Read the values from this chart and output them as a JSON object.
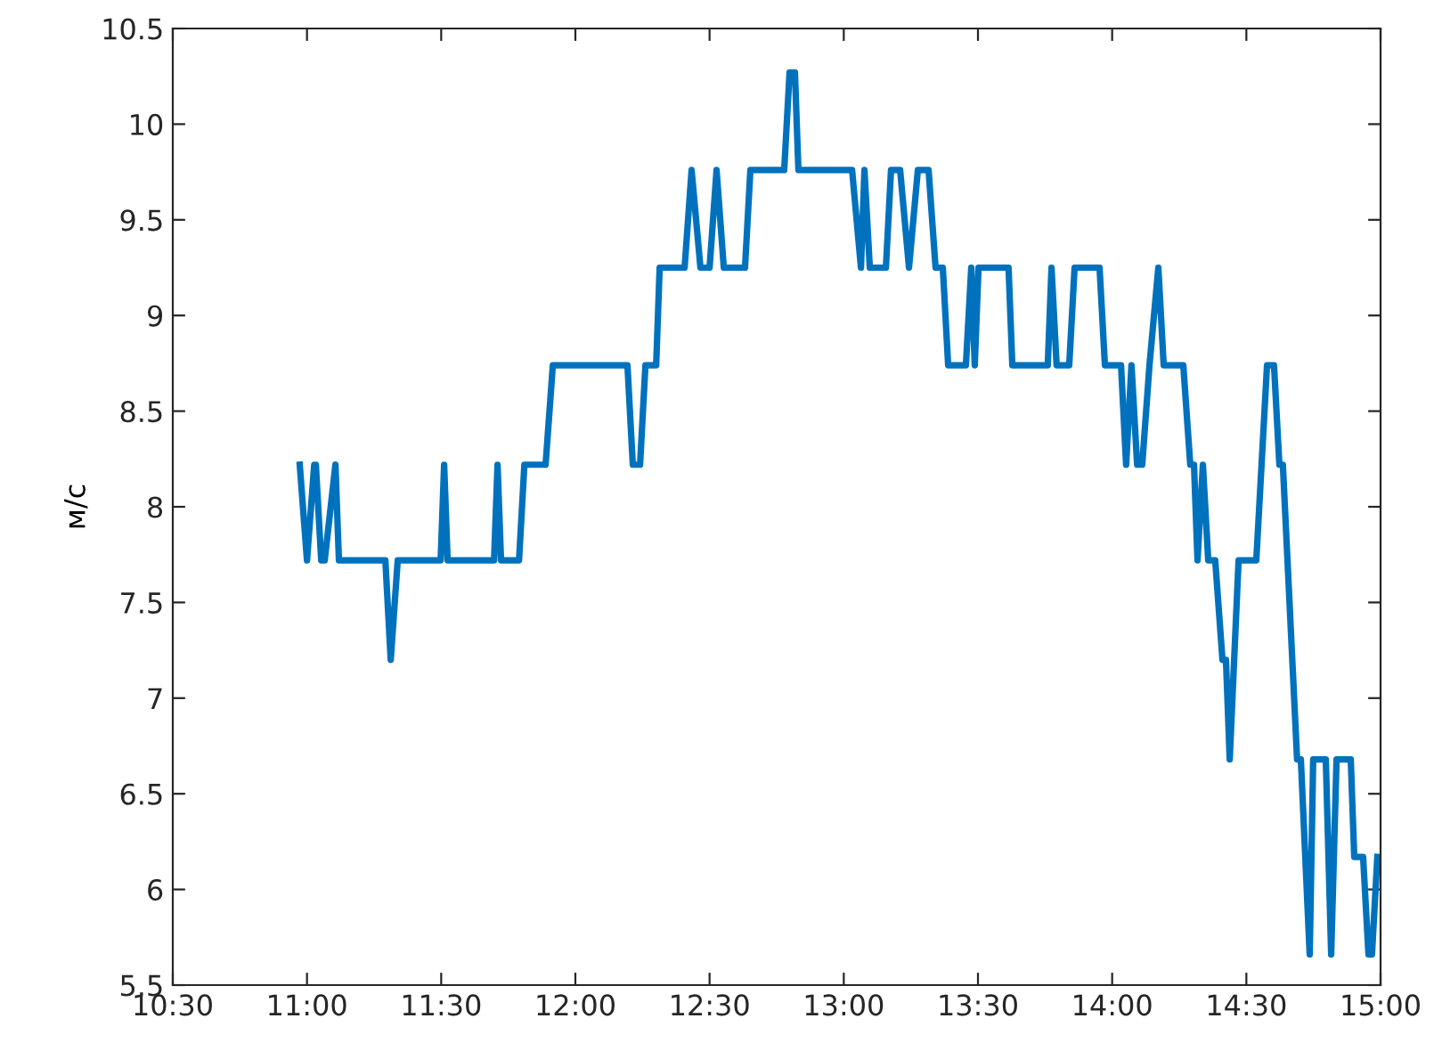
{
  "chart_data": {
    "type": "line",
    "ylabel": "м/с",
    "x": [
      10.973,
      11.0,
      11.027,
      11.033,
      11.053,
      11.066,
      11.106,
      11.119,
      11.292,
      11.312,
      11.338,
      11.498,
      11.511,
      11.524,
      11.697,
      11.71,
      11.723,
      11.79,
      11.81,
      11.889,
      11.916,
      12.194,
      12.214,
      12.241,
      12.261,
      12.301,
      12.314,
      12.407,
      12.433,
      12.466,
      12.5,
      12.526,
      12.553,
      12.632,
      12.652,
      12.778,
      12.798,
      12.818,
      12.831,
      13.031,
      13.064,
      13.077,
      13.097,
      13.157,
      13.176,
      13.21,
      13.243,
      13.276,
      13.316,
      13.342,
      13.369,
      13.389,
      13.455,
      13.475,
      13.488,
      13.502,
      13.614,
      13.628,
      13.76,
      13.774,
      13.793,
      13.84,
      13.86,
      13.953,
      13.973,
      14.033,
      14.052,
      14.072,
      14.093,
      14.112,
      14.139,
      14.172,
      14.192,
      14.265,
      14.291,
      14.305,
      14.318,
      14.338,
      14.358,
      14.384,
      14.411,
      14.424,
      14.438,
      14.471,
      14.537,
      14.577,
      14.603,
      14.623,
      14.636,
      14.689,
      14.703,
      14.736,
      14.749,
      14.796,
      14.816,
      14.836,
      14.889,
      14.902,
      14.935,
      14.955,
      14.968,
      14.988
    ],
    "series": [
      {
        "color": "#0072bd",
        "values": [
          8.22,
          7.72,
          8.22,
          8.22,
          7.72,
          7.72,
          8.22,
          7.72,
          7.72,
          7.2,
          7.72,
          7.72,
          8.22,
          7.72,
          7.72,
          8.22,
          7.72,
          7.72,
          8.22,
          8.22,
          8.74,
          8.74,
          8.22,
          8.22,
          8.74,
          8.74,
          9.25,
          9.25,
          9.76,
          9.25,
          9.25,
          9.76,
          9.25,
          9.25,
          9.76,
          9.76,
          10.27,
          10.27,
          9.76,
          9.76,
          9.25,
          9.76,
          9.25,
          9.25,
          9.76,
          9.76,
          9.25,
          9.76,
          9.76,
          9.25,
          9.25,
          8.74,
          8.74,
          9.25,
          8.74,
          9.25,
          9.25,
          8.74,
          8.74,
          9.25,
          8.74,
          8.74,
          9.25,
          9.25,
          8.74,
          8.74,
          8.22,
          8.74,
          8.22,
          8.22,
          8.74,
          9.25,
          8.74,
          8.74,
          8.22,
          8.22,
          7.72,
          8.22,
          7.72,
          7.72,
          7.2,
          7.2,
          6.68,
          7.72,
          7.72,
          8.74,
          8.74,
          8.22,
          8.22,
          6.68,
          6.68,
          5.66,
          6.68,
          6.68,
          5.66,
          6.68,
          6.68,
          6.17,
          6.17,
          5.66,
          5.66,
          6.17
        ]
      }
    ],
    "xlim": [
      10.5,
      15
    ],
    "ylim": [
      5.5,
      10.5
    ],
    "xticks": [
      {
        "value": 10.5,
        "label": "10:30"
      },
      {
        "value": 11,
        "label": "11:00"
      },
      {
        "value": 11.5,
        "label": "11:30"
      },
      {
        "value": 12,
        "label": "12:00"
      },
      {
        "value": 12.5,
        "label": "12:30"
      },
      {
        "value": 13,
        "label": "13:00"
      },
      {
        "value": 13.5,
        "label": "13:30"
      },
      {
        "value": 14,
        "label": "14:00"
      },
      {
        "value": 14.5,
        "label": "14:30"
      },
      {
        "value": 15,
        "label": "15:00"
      }
    ],
    "yticks": [
      5.5,
      6,
      6.5,
      7,
      7.5,
      8,
      8.5,
      9,
      9.5,
      10,
      10.5
    ],
    "grid": false,
    "legend": false,
    "line_style": "solid",
    "marker": "none"
  }
}
